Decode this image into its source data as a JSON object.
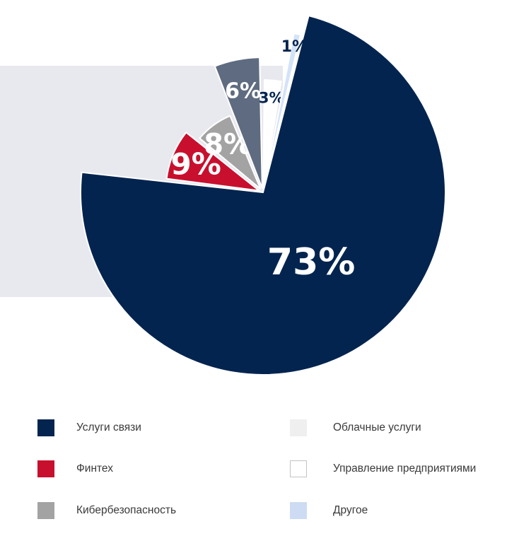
{
  "chart_data": {
    "type": "pie",
    "slices": [
      {
        "label": "Услуги связи",
        "value": 73,
        "display": "73%",
        "color": "#03244f",
        "text_color": "#ffffff"
      },
      {
        "label": "Финтех",
        "value": 9,
        "display": "9%",
        "color": "#c8102e",
        "text_color": "#ffffff"
      },
      {
        "label": "Кибербезопасность",
        "value": 8,
        "display": "8%",
        "color": "#a3a3a3",
        "text_color": "#ffffff"
      },
      {
        "label": "Облачные услуги",
        "value": 6,
        "display": "6%",
        "color": "#5f6b80",
        "text_color": "#ffffff"
      },
      {
        "label": "Управление предприятиями",
        "value": 3,
        "display": "3%",
        "color": "#ffffff",
        "text_color": "#03244f"
      },
      {
        "label": "Другое",
        "value": 1,
        "display": "1%",
        "color": "#d3e3f8",
        "text_color": "#03244f"
      }
    ]
  },
  "legend": {
    "items": [
      {
        "label": "Услуги связи",
        "color": "#03244f"
      },
      {
        "label": "Финтех",
        "color": "#c8102e"
      },
      {
        "label": "Кибербезопасность",
        "color": "#a3a3a3"
      },
      {
        "label": "Облачные услуги",
        "color": "#efefef"
      },
      {
        "label": "Управление предприятиями",
        "color": "#ffffff"
      },
      {
        "label": "Другое",
        "color": "#cddcf2"
      }
    ]
  }
}
